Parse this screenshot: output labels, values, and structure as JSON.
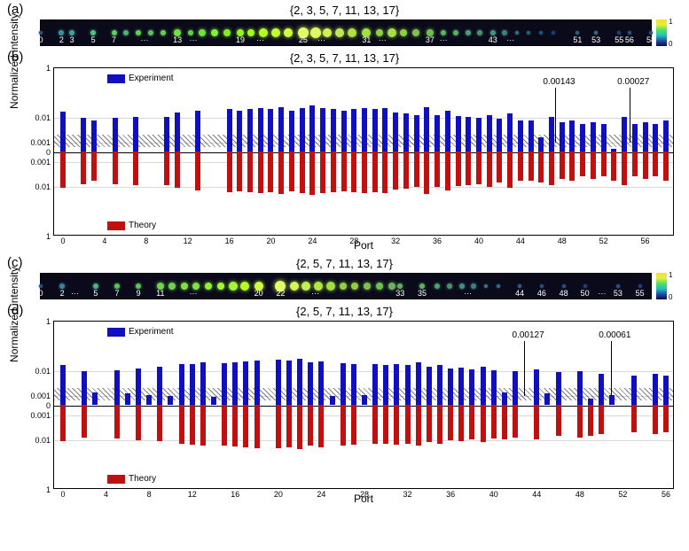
{
  "panels": {
    "a": {
      "label": "(a)",
      "title": "{2, 3, 5, 7, 11, 13, 17}",
      "ports": [
        0,
        2,
        3,
        5,
        7,
        "",
        13,
        "",
        19,
        "",
        25,
        "",
        31,
        "",
        37,
        "",
        43,
        "",
        51,
        53,
        55,
        56,
        58
      ],
      "port_pos": [
        0,
        3.4,
        5.1,
        8.6,
        12,
        17,
        22.4,
        25,
        32.7,
        36,
        43,
        46,
        53.4,
        56,
        63.8,
        66,
        74.1,
        77,
        88,
        91,
        94.8,
        96.5,
        100
      ],
      "spots": [
        {
          "x": 0,
          "c": "#2a5580",
          "s": 2
        },
        {
          "x": 3.4,
          "c": "#3a90a0",
          "s": 3
        },
        {
          "x": 5.1,
          "c": "#40a0a0",
          "s": 3
        },
        {
          "x": 8.6,
          "c": "#50c080",
          "s": 3
        },
        {
          "x": 12,
          "c": "#5ad060",
          "s": 3
        },
        {
          "x": 14,
          "c": "#50b070",
          "s": 3
        },
        {
          "x": 16,
          "c": "#60d050",
          "s": 3
        },
        {
          "x": 18,
          "c": "#5ac060",
          "s": 3
        },
        {
          "x": 20,
          "c": "#60d050",
          "s": 3
        },
        {
          "x": 22.4,
          "c": "#70e040",
          "s": 4
        },
        {
          "x": 24.5,
          "c": "#60d050",
          "s": 3
        },
        {
          "x": 26.5,
          "c": "#70e040",
          "s": 4
        },
        {
          "x": 28.5,
          "c": "#80f030",
          "s": 4
        },
        {
          "x": 30.5,
          "c": "#80f020",
          "s": 4
        },
        {
          "x": 32.7,
          "c": "#90f820",
          "s": 4
        },
        {
          "x": 34.5,
          "c": "#a0ff10",
          "s": 4
        },
        {
          "x": 36.5,
          "c": "#b0ff20",
          "s": 5
        },
        {
          "x": 38.5,
          "c": "#c0ff30",
          "s": 5
        },
        {
          "x": 40.5,
          "c": "#d0ff40",
          "s": 5
        },
        {
          "x": 43,
          "c": "#e0ff60",
          "s": 6
        },
        {
          "x": 45,
          "c": "#e0f860",
          "s": 6
        },
        {
          "x": 47,
          "c": "#d0f050",
          "s": 5
        },
        {
          "x": 49,
          "c": "#c0e850",
          "s": 5
        },
        {
          "x": 51,
          "c": "#b0e040",
          "s": 5
        },
        {
          "x": 53.4,
          "c": "#a0e040",
          "s": 5
        },
        {
          "x": 55.5,
          "c": "#90d040",
          "s": 4
        },
        {
          "x": 57.5,
          "c": "#a0e040",
          "s": 5
        },
        {
          "x": 59.5,
          "c": "#90d040",
          "s": 4
        },
        {
          "x": 61.5,
          "c": "#80c050",
          "s": 4
        },
        {
          "x": 63.8,
          "c": "#70c050",
          "s": 4
        },
        {
          "x": 66,
          "c": "#60b060",
          "s": 3
        },
        {
          "x": 68,
          "c": "#5ab060",
          "s": 3
        },
        {
          "x": 70,
          "c": "#50a070",
          "s": 3
        },
        {
          "x": 72,
          "c": "#509070",
          "s": 3
        },
        {
          "x": 74.1,
          "c": "#4a9080",
          "s": 3
        },
        {
          "x": 76,
          "c": "#408080",
          "s": 3
        },
        {
          "x": 78,
          "c": "#307080",
          "s": 2
        },
        {
          "x": 80,
          "c": "#2a6080",
          "s": 2
        },
        {
          "x": 82,
          "c": "#205080",
          "s": 2
        },
        {
          "x": 84,
          "c": "#1a4080",
          "s": 2
        },
        {
          "x": 88,
          "c": "#2a6080",
          "s": 2
        },
        {
          "x": 91,
          "c": "#307080",
          "s": 2
        },
        {
          "x": 94.8,
          "c": "#204070",
          "s": 2
        },
        {
          "x": 96.5,
          "c": "#2a5080",
          "s": 2
        },
        {
          "x": 100,
          "c": "#205080",
          "s": 2
        }
      ]
    },
    "c": {
      "label": "(c)",
      "title": "{2, 5, 7, 11, 13, 17}",
      "ports": [
        0,
        2,
        "",
        5,
        7,
        9,
        11,
        "",
        20,
        22,
        "",
        33,
        35,
        "",
        44,
        46,
        48,
        50,
        "",
        53,
        55
      ],
      "port_pos": [
        0,
        3.5,
        5.6,
        9,
        12.5,
        16,
        19.6,
        25,
        35.7,
        39.3,
        45,
        58.9,
        62.5,
        70,
        78.5,
        82.1,
        85.7,
        89.2,
        92,
        94.6,
        98.2
      ],
      "spots": [
        {
          "x": 0,
          "c": "#2a5580",
          "s": 2
        },
        {
          "x": 3.5,
          "c": "#3a80a0",
          "s": 3
        },
        {
          "x": 9,
          "c": "#50b080",
          "s": 3
        },
        {
          "x": 12.5,
          "c": "#5ac060",
          "s": 3
        },
        {
          "x": 16,
          "c": "#60c060",
          "s": 3
        },
        {
          "x": 19.6,
          "c": "#70d050",
          "s": 4
        },
        {
          "x": 21.5,
          "c": "#70d050",
          "s": 4
        },
        {
          "x": 23.5,
          "c": "#80e040",
          "s": 4
        },
        {
          "x": 25.5,
          "c": "#80e040",
          "s": 4
        },
        {
          "x": 27.5,
          "c": "#90f030",
          "s": 4
        },
        {
          "x": 29.5,
          "c": "#a0f830",
          "s": 4
        },
        {
          "x": 31.5,
          "c": "#a0f830",
          "s": 5
        },
        {
          "x": 33.5,
          "c": "#b0ff20",
          "s": 5
        },
        {
          "x": 35.7,
          "c": "#d0ff40",
          "s": 5
        },
        {
          "x": 39.3,
          "c": "#e0ff60",
          "s": 6
        },
        {
          "x": 41.5,
          "c": "#d0f850",
          "s": 5
        },
        {
          "x": 43.5,
          "c": "#c0f050",
          "s": 5
        },
        {
          "x": 45.5,
          "c": "#b0e840",
          "s": 5
        },
        {
          "x": 47.5,
          "c": "#a0e040",
          "s": 5
        },
        {
          "x": 49.5,
          "c": "#90d040",
          "s": 4
        },
        {
          "x": 51.5,
          "c": "#90d040",
          "s": 4
        },
        {
          "x": 53.5,
          "c": "#80c050",
          "s": 4
        },
        {
          "x": 55.5,
          "c": "#70c050",
          "s": 4
        },
        {
          "x": 57.5,
          "c": "#70b060",
          "s": 4
        },
        {
          "x": 58.9,
          "c": "#60b060",
          "s": 3
        },
        {
          "x": 62.5,
          "c": "#60b060",
          "s": 3
        },
        {
          "x": 65,
          "c": "#50a070",
          "s": 3
        },
        {
          "x": 67,
          "c": "#509070",
          "s": 3
        },
        {
          "x": 69,
          "c": "#409080",
          "s": 3
        },
        {
          "x": 71,
          "c": "#408080",
          "s": 3
        },
        {
          "x": 73,
          "c": "#3a7080",
          "s": 2
        },
        {
          "x": 75,
          "c": "#307080",
          "s": 2
        },
        {
          "x": 78.5,
          "c": "#306080",
          "s": 2
        },
        {
          "x": 82.1,
          "c": "#2a5080",
          "s": 2
        },
        {
          "x": 85.7,
          "c": "#2a5080",
          "s": 2
        },
        {
          "x": 89.2,
          "c": "#204080",
          "s": 2
        },
        {
          "x": 94.6,
          "c": "#2a5080",
          "s": 2
        },
        {
          "x": 98.2,
          "c": "#204080",
          "s": 2
        }
      ]
    },
    "b": {
      "label": "(b)",
      "title": "{2, 3, 5, 7, 11, 13, 17}",
      "ylabel": "Normalized intensity",
      "xlabel": "Port",
      "yticks": [
        "1",
        "0.01",
        "0.001",
        "0",
        "0.001",
        "0.01",
        "1"
      ],
      "xticks": [
        0,
        4,
        8,
        12,
        16,
        20,
        24,
        28,
        32,
        36,
        40,
        44,
        48,
        52,
        56
      ],
      "xmax": 58,
      "legend": {
        "exp": "Experiment",
        "thy": "Theory"
      },
      "ann": [
        {
          "t": "0.00143",
          "x": 79
        },
        {
          "t": "0.00027",
          "x": 91
        }
      ],
      "exp": [
        0.016,
        0,
        0.009,
        0.007,
        0,
        0.009,
        0,
        0.01,
        0,
        0,
        0.01,
        0.015,
        0,
        0.018,
        0,
        0,
        0.02,
        0.018,
        0.02,
        0.022,
        0.021,
        0.025,
        0.018,
        0.022,
        0.028,
        0.022,
        0.02,
        0.018,
        0.02,
        0.022,
        0.02,
        0.022,
        0.015,
        0.014,
        0.012,
        0.025,
        0.012,
        0.017,
        0.011,
        0.01,
        0.009,
        0.012,
        0.008,
        0.014,
        0.007,
        0.007,
        0.00143,
        0.01,
        0.006,
        0.007,
        0.005,
        0.006,
        0.005,
        0.00027,
        0.01,
        0.005,
        0.006,
        0.005,
        0.007
      ],
      "thy": [
        0.012,
        0,
        0.008,
        0.006,
        0,
        0.008,
        0,
        0.009,
        0,
        0,
        0.009,
        0.012,
        0,
        0.015,
        0,
        0,
        0.017,
        0.016,
        0.018,
        0.019,
        0.018,
        0.02,
        0.016,
        0.019,
        0.022,
        0.019,
        0.018,
        0.016,
        0.018,
        0.019,
        0.018,
        0.019,
        0.014,
        0.013,
        0.011,
        0.02,
        0.011,
        0.015,
        0.01,
        0.009,
        0.008,
        0.011,
        0.007,
        0.012,
        0.006,
        0.006,
        0.007,
        0.009,
        0.005,
        0.006,
        0.004,
        0.005,
        0.004,
        0.006,
        0.009,
        0.004,
        0.005,
        0.004,
        0.006
      ]
    },
    "d": {
      "label": "(d)",
      "title": "{2, 5, 7, 11, 13, 17}",
      "ylabel": "Normalized intensity",
      "xlabel": "Port",
      "yticks": [
        "1",
        "0.01",
        "0.001",
        "0",
        "0.001",
        "0.01",
        "1"
      ],
      "xticks": [
        0,
        4,
        8,
        12,
        16,
        20,
        24,
        28,
        32,
        36,
        40,
        44,
        48,
        52,
        56
      ],
      "xmax": 56,
      "legend": {
        "exp": "Experiment",
        "thy": "Theory"
      },
      "ann": [
        {
          "t": "0.00127",
          "x": 74
        },
        {
          "t": "0.00061",
          "x": 88
        }
      ],
      "exp": [
        0.016,
        0,
        0.009,
        0.0012,
        0,
        0.01,
        0.0011,
        0.012,
        0.001,
        0.014,
        0.0009,
        0.017,
        0.018,
        0.02,
        0.0008,
        0.019,
        0.021,
        0.022,
        0.025,
        0,
        0.026,
        0.024,
        0.028,
        0.02,
        0.022,
        0.0009,
        0.019,
        0.018,
        0.001,
        0.017,
        0.016,
        0.018,
        0.016,
        0.02,
        0.014,
        0.016,
        0.012,
        0.013,
        0.011,
        0.014,
        0.01,
        0.00127,
        0.009,
        0,
        0.011,
        0.0011,
        0.008,
        0,
        0.009,
        0.00061,
        0.007,
        0.001,
        0,
        0.006,
        0,
        0.007,
        0.006
      ],
      "thy": [
        0.012,
        0,
        0.008,
        0,
        0,
        0.009,
        0,
        0.011,
        0,
        0.012,
        0,
        0.015,
        0.016,
        0.018,
        0,
        0.017,
        0.019,
        0.02,
        0.022,
        0,
        0.023,
        0.021,
        0.024,
        0.018,
        0.02,
        0,
        0.017,
        0.016,
        0,
        0.015,
        0.015,
        0.016,
        0.015,
        0.018,
        0.013,
        0.015,
        0.011,
        0.012,
        0.01,
        0.013,
        0.009,
        0.01,
        0.008,
        0,
        0.01,
        0,
        0.007,
        0,
        0.008,
        0.007,
        0.006,
        0,
        0,
        0.005,
        0,
        0.006,
        0.005
      ]
    }
  },
  "colors": {
    "exp": "#1010c0",
    "thy": "#c01010",
    "strip_bg": "#0a0a1a",
    "hatch": "#000000"
  },
  "colorbar": {
    "ticks": [
      "1",
      "0"
    ],
    "stops": [
      "#0a0a50",
      "#2050a0",
      "#20c0c0",
      "#50e060",
      "#e0f040",
      "#ffe020"
    ]
  }
}
